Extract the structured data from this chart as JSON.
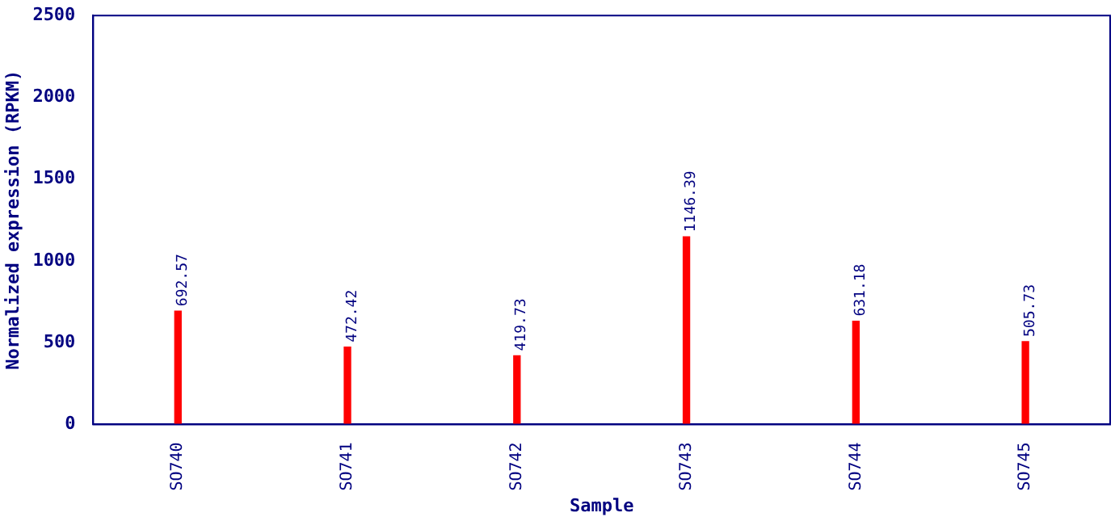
{
  "chart_data": {
    "type": "bar",
    "xlabel": "Sample",
    "ylabel": "Normalized expression (RPKM)",
    "categories": [
      "SO740",
      "SO741",
      "SO742",
      "SO743",
      "SO744",
      "SO745"
    ],
    "series": [
      {
        "color": "#ff0000",
        "values": [
          692.57,
          472.42,
          419.73,
          1146.39,
          631.18,
          505.73
        ]
      }
    ],
    "ylim": [
      0,
      2500
    ],
    "yticks": [
      0,
      500,
      1000,
      1500,
      2000,
      2500
    ],
    "grid": false,
    "legend": false,
    "data_labels": true
  }
}
